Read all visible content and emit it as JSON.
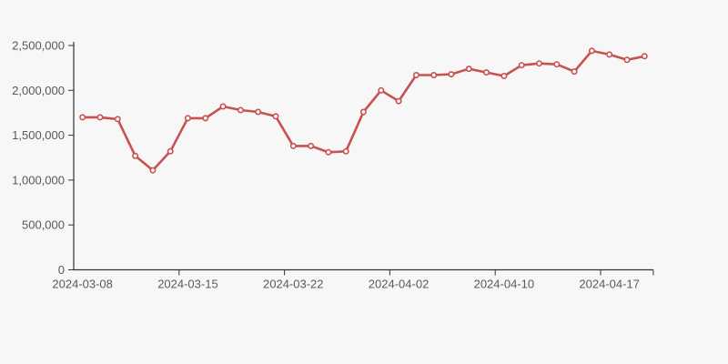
{
  "chart_data": {
    "type": "line",
    "title": "",
    "xlabel": "",
    "ylabel": "",
    "legend": "none",
    "grid": false,
    "num_points": 33,
    "series": [
      {
        "name": "series-1",
        "values": [
          1700000,
          1700000,
          1680000,
          1270000,
          1110000,
          1320000,
          1690000,
          1690000,
          1820000,
          1780000,
          1760000,
          1710000,
          1380000,
          1380000,
          1310000,
          1320000,
          1760000,
          2000000,
          1880000,
          2170000,
          2170000,
          2180000,
          2240000,
          2200000,
          2160000,
          2280000,
          2300000,
          2290000,
          2210000,
          2440000,
          2400000,
          2340000,
          2380000
        ]
      }
    ],
    "x_tick_labels": [
      "2024-03-08",
      "2024-03-15",
      "2024-03-22",
      "2024-04-02",
      "2024-04-10",
      "2024-04-17"
    ],
    "x_tick_point_indices": [
      0,
      6,
      12,
      18,
      24,
      30
    ],
    "y_tick_values": [
      0,
      500000,
      1000000,
      1500000,
      2000000,
      2500000
    ],
    "y_tick_labels": [
      "0",
      "500,000",
      "1,000,000",
      "1,500,000",
      "2,000,000",
      "2,500,000"
    ],
    "ylim": [
      0,
      2500000
    ],
    "colors": {
      "line": "#c75250",
      "marker_fill": "#fafafa",
      "background": "#f7f7f7",
      "axis": "#333333",
      "tick_label": "#595959"
    }
  }
}
